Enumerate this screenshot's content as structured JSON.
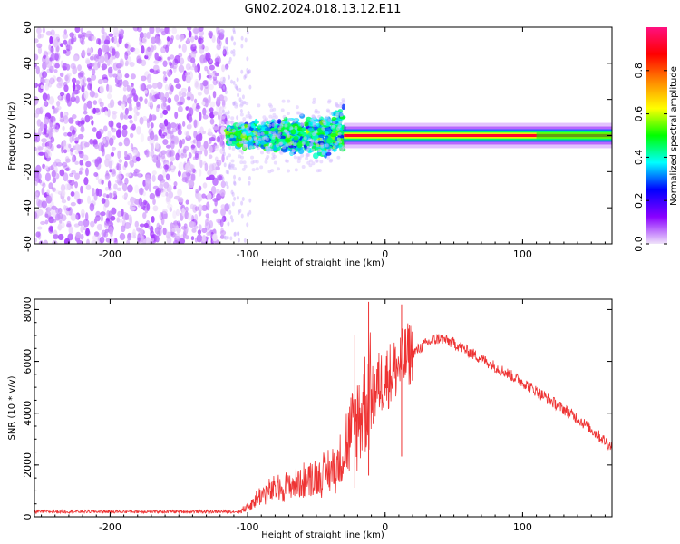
{
  "figure": {
    "title": "GN02.2024.018.13.12.E11"
  },
  "chart_data": [
    {
      "type": "heatmap",
      "xlabel": "Height of straight line (km)",
      "ylabel": "Frequency (Hz)",
      "xlim": [
        -255,
        165
      ],
      "ylim": [
        -60,
        60
      ],
      "xticks": [
        -200,
        -100,
        0,
        100
      ],
      "yticks": [
        60,
        40,
        20,
        0,
        -20,
        -40,
        -60
      ],
      "colorbar": {
        "label": "Normalized spectral amplitude",
        "range": [
          0,
          1
        ],
        "ticks": [
          "0.8",
          "0.6",
          "0.4",
          "0.2",
          "0.0"
        ],
        "tick_values": [
          0.8,
          0.6,
          0.4,
          0.2,
          0.0
        ],
        "colors": [
          "#f0e4fa",
          "#8a00ff",
          "#0000ff",
          "#00ffff",
          "#00ff00",
          "#ffff00",
          "#ff8800",
          "#ff0000",
          "#ff1080"
        ]
      },
      "regions": [
        {
          "x": [
            -255,
            -115
          ],
          "freq": [
            -60,
            60
          ],
          "amplitude": [
            0.0,
            0.1
          ],
          "description": "broadband noise"
        },
        {
          "x": [
            -115,
            -30
          ],
          "freq": [
            -15,
            20
          ],
          "amplitude": [
            0.2,
            0.5
          ]
        },
        {
          "x": [
            -30,
            165
          ],
          "freq": [
            -2,
            2
          ],
          "amplitude": [
            0.4,
            0.95
          ]
        }
      ]
    },
    {
      "type": "line",
      "xlabel": "Height of straight line (km)",
      "ylabel": "SNR (10 * v/v)",
      "xlim": [
        -255,
        165
      ],
      "ylim": [
        0,
        8400
      ],
      "xticks": [
        -200,
        -100,
        0,
        100
      ],
      "yticks": [
        8000,
        6000,
        4000,
        2000,
        0
      ],
      "color": "#ee3333",
      "series": [
        {
          "x": [
            -255,
            -200,
            -150,
            -105,
            -100,
            -90,
            -75,
            -60,
            -45,
            -35,
            -25,
            -15,
            -10,
            -5,
            0,
            10,
            20,
            30,
            40,
            50,
            60,
            80,
            100,
            120,
            140,
            165
          ],
          "values": [
            200,
            200,
            200,
            200,
            300,
            700,
            900,
            1100,
            1300,
            1600,
            2500,
            3500,
            4300,
            5000,
            5200,
            5700,
            6300,
            6700,
            6900,
            6700,
            6400,
            5800,
            5200,
            4500,
            3800,
            2700
          ]
        }
      ],
      "spikes": [
        {
          "x": -12,
          "y": 8300
        },
        {
          "x": 12,
          "y": 8200
        },
        {
          "x": -22,
          "y": 7000
        }
      ]
    }
  ]
}
